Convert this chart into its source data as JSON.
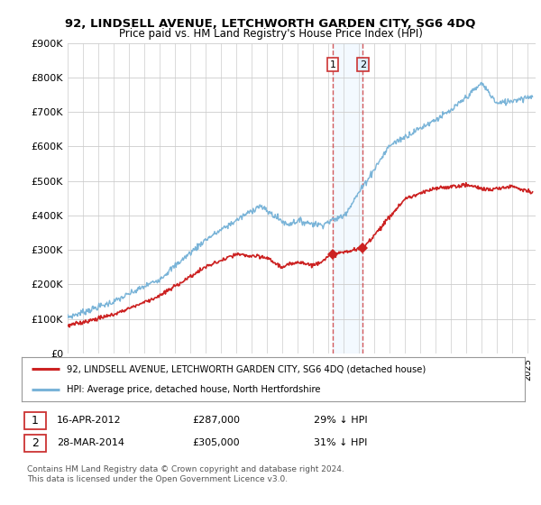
{
  "title": "92, LINDSELL AVENUE, LETCHWORTH GARDEN CITY, SG6 4DQ",
  "subtitle": "Price paid vs. HM Land Registry's House Price Index (HPI)",
  "ylim": [
    0,
    900000
  ],
  "yticks": [
    0,
    100000,
    200000,
    300000,
    400000,
    500000,
    600000,
    700000,
    800000,
    900000
  ],
  "ytick_labels": [
    "£0",
    "£100K",
    "£200K",
    "£300K",
    "£400K",
    "£500K",
    "£600K",
    "£700K",
    "£800K",
    "£900K"
  ],
  "xlim_start": 1995.0,
  "xlim_end": 2025.5,
  "hpi_color": "#7ab4d8",
  "price_color": "#cc2222",
  "vline_color": "#cc3333",
  "highlight_color": "#ddeeff",
  "legend_entry1": "92, LINDSELL AVENUE, LETCHWORTH GARDEN CITY, SG6 4DQ (detached house)",
  "legend_entry2": "HPI: Average price, detached house, North Hertfordshire",
  "annotation1_date": "16-APR-2012",
  "annotation1_price": "£287,000",
  "annotation1_pct": "29% ↓ HPI",
  "annotation2_date": "28-MAR-2014",
  "annotation2_price": "£305,000",
  "annotation2_pct": "31% ↓ HPI",
  "footer": "Contains HM Land Registry data © Crown copyright and database right 2024.\nThis data is licensed under the Open Government Licence v3.0.",
  "marker1_x": 2012.29,
  "marker1_y": 287000,
  "marker2_x": 2014.24,
  "marker2_y": 305000,
  "background_color": "#ffffff"
}
